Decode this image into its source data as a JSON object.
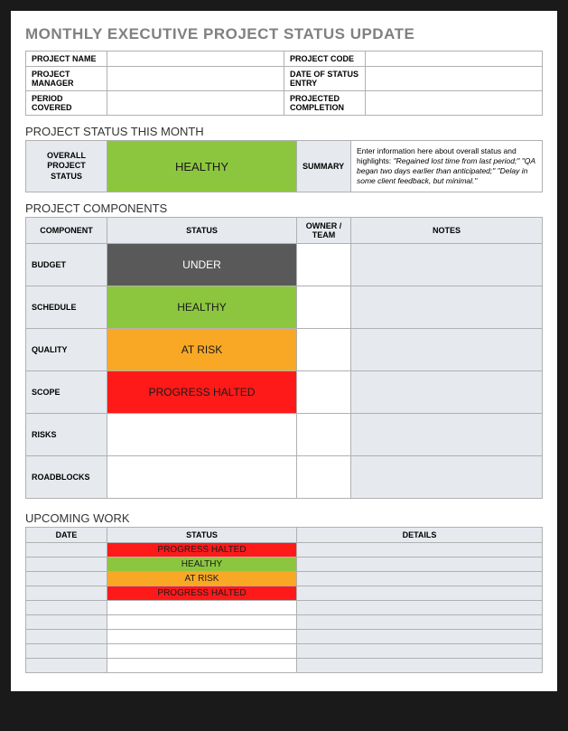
{
  "title": "MONTHLY EXECUTIVE PROJECT STATUS UPDATE",
  "meta": {
    "project_name_label": "PROJECT NAME",
    "project_name": "",
    "project_code_label": "PROJECT CODE",
    "project_code": "",
    "project_manager_label": "PROJECT MANAGER",
    "project_manager": "",
    "date_entry_label": "DATE OF STATUS ENTRY",
    "date_entry": "",
    "period_label": "PERIOD COVERED",
    "period": "",
    "projected_label": "PROJECTED COMPLETION",
    "projected": ""
  },
  "sections": {
    "status": "PROJECT STATUS THIS MONTH",
    "components": "PROJECT COMPONENTS",
    "upcoming": "UPCOMING WORK"
  },
  "overall": {
    "label": "OVERALL PROJECT STATUS",
    "value": "HEALTHY",
    "summary_label": "SUMMARY",
    "summary_lead": "Enter information here about overall status and highlights: ",
    "summary_rest": "\"Regained lost time from last period;\" \"QA began two days earlier than anticipated;\" \"Delay in some client feedback, but minimal.\""
  },
  "components": {
    "headers": {
      "component": "COMPONENT",
      "status": "STATUS",
      "owner": "OWNER / TEAM",
      "notes": "NOTES"
    },
    "rows": [
      {
        "label": "BUDGET",
        "status": "UNDER",
        "class": "status-under"
      },
      {
        "label": "SCHEDULE",
        "status": "HEALTHY",
        "class": "status-healthy-cell"
      },
      {
        "label": "QUALITY",
        "status": "AT RISK",
        "class": "status-atrisk"
      },
      {
        "label": "SCOPE",
        "status": "PROGRESS HALTED",
        "class": "status-halted"
      },
      {
        "label": "RISKS",
        "status": "",
        "class": "empty-white"
      },
      {
        "label": "ROADBLOCKS",
        "status": "",
        "class": "empty-white"
      }
    ]
  },
  "upcoming": {
    "headers": {
      "date": "DATE",
      "status": "STATUS",
      "details": "DETAILS"
    },
    "rows": [
      {
        "status": "PROGRESS HALTED",
        "class": "status-halted"
      },
      {
        "status": "HEALTHY",
        "class": "status-healthy-cell"
      },
      {
        "status": "AT RISK",
        "class": "status-atrisk"
      },
      {
        "status": "PROGRESS HALTED",
        "class": "status-halted"
      },
      {
        "status": "",
        "class": "up-empty-white"
      },
      {
        "status": "",
        "class": "up-empty-white"
      },
      {
        "status": "",
        "class": "up-empty-white"
      },
      {
        "status": "",
        "class": "up-empty-white"
      },
      {
        "status": "",
        "class": "up-empty-white"
      }
    ]
  },
  "colors": {
    "healthy": "#8cc63f",
    "under": "#595959",
    "atrisk": "#f9a825",
    "halted": "#ff1a1a",
    "header_bg": "#e6eaee",
    "border": "#b0b0b0",
    "title": "#808080"
  }
}
